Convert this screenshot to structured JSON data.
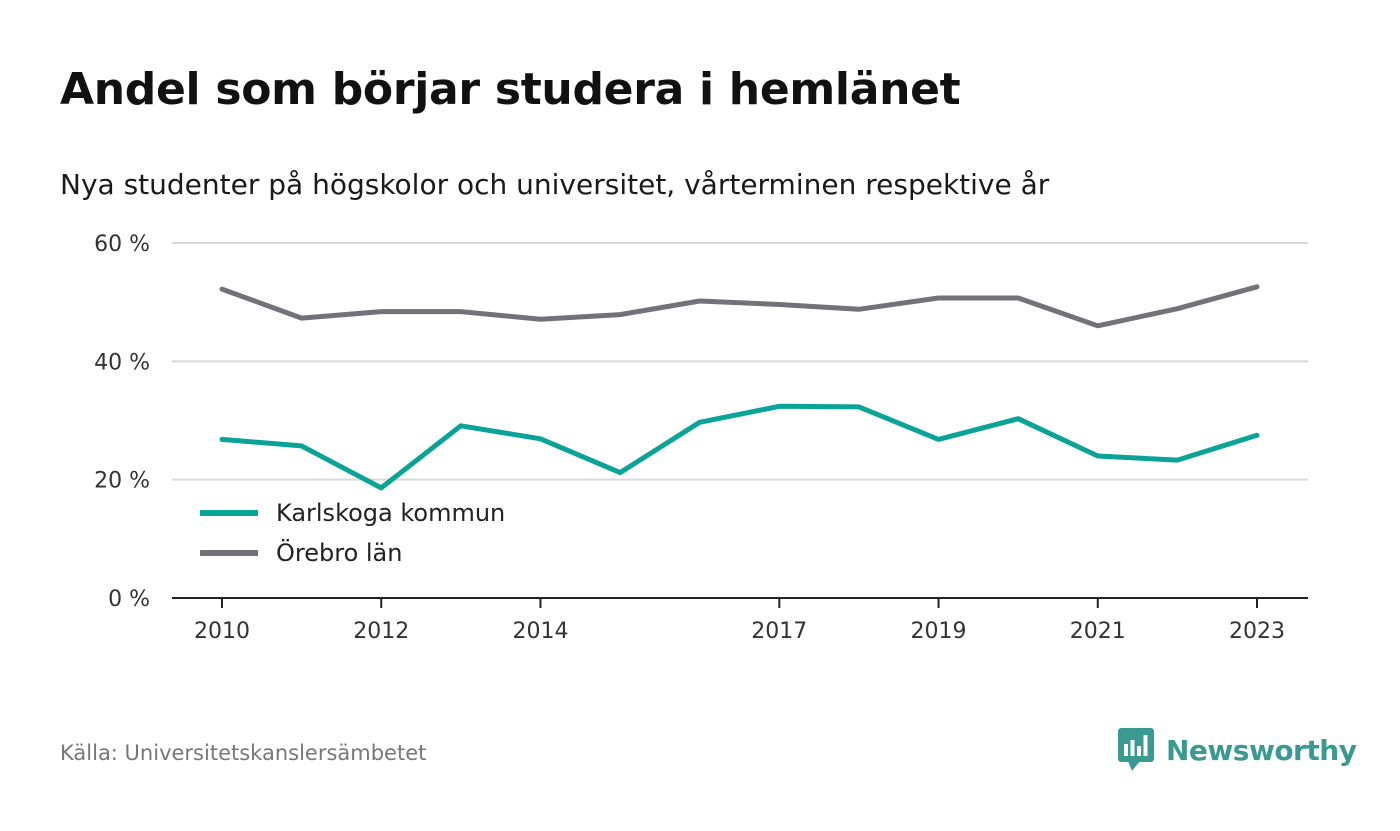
{
  "header": {
    "title": "Andel som börjar studera i hemlänet",
    "subtitle": "Nya studenter på högskolor och universitet, vårterminen respektive år"
  },
  "footer": {
    "source": "Källa: Universitetskanslersämbetet",
    "brand": "Newsworthy",
    "brand_icon": "bar-chart-speech-bubble-icon"
  },
  "colors": {
    "karlskoga": "#0aa398",
    "orebro": "#737278",
    "brand": "#3a9a92",
    "grid": "#d9d9d9",
    "axis": "#222222"
  },
  "chart_data": {
    "type": "line",
    "x": [
      2010,
      2011,
      2012,
      2013,
      2014,
      2015,
      2016,
      2017,
      2018,
      2019,
      2020,
      2021,
      2022,
      2023
    ],
    "x_tick_labels": [
      "2010",
      "2012",
      "2014",
      "2017",
      "2019",
      "2021",
      "2023"
    ],
    "y_ticks": [
      0,
      20,
      40,
      60
    ],
    "y_tick_labels": [
      "0 %",
      "20 %",
      "40 %",
      "60 %"
    ],
    "ylim": [
      0,
      60
    ],
    "grid": true,
    "legend_position": "bottom-left",
    "series": [
      {
        "name": "Karlskoga kommun",
        "color": "#0aa398",
        "values": [
          26.8,
          25.7,
          18.6,
          29.1,
          26.9,
          21.2,
          29.7,
          32.4,
          32.3,
          26.8,
          30.3,
          24.0,
          23.3,
          27.5
        ]
      },
      {
        "name": "Örebro län",
        "color": "#737278",
        "values": [
          52.2,
          47.3,
          48.4,
          48.4,
          47.1,
          47.9,
          50.2,
          49.6,
          48.8,
          50.7,
          50.7,
          46.0,
          48.9,
          52.6
        ]
      }
    ]
  }
}
